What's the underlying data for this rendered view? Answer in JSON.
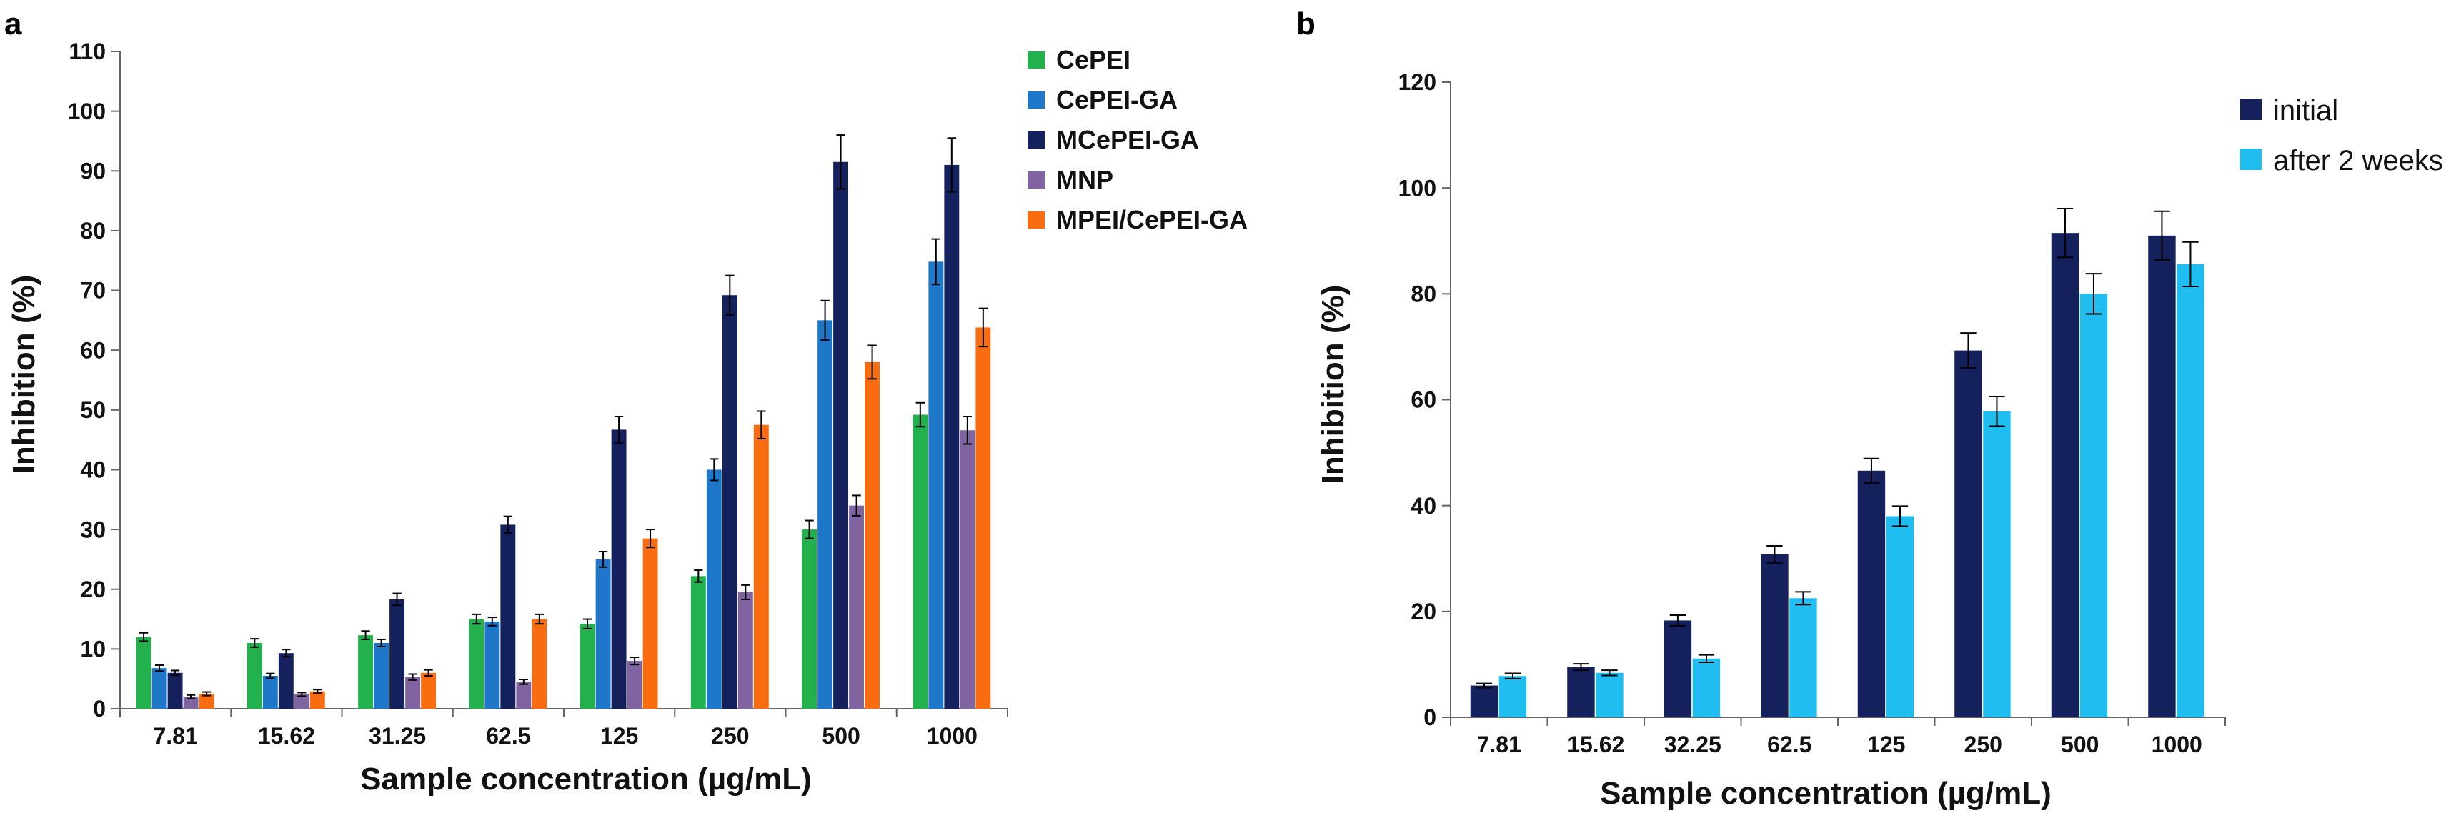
{
  "chart_data": [
    {
      "panel": "a",
      "type": "bar",
      "xlabel": "Sample concentration (µg/mL)",
      "ylabel": "Inhibition (%)",
      "ylim": [
        0,
        110
      ],
      "ytick_step": 10,
      "categories": [
        "7.81",
        "15.62",
        "31.25",
        "62.5",
        "125",
        "250",
        "500",
        "1000"
      ],
      "series": [
        {
          "name": "CePEI",
          "color": "#22b14c",
          "values": [
            12,
            11,
            12.3,
            15,
            14.2,
            22.2,
            30,
            49.2
          ],
          "errors": [
            0.7,
            0.7,
            0.7,
            0.8,
            0.8,
            1.0,
            1.5,
            2.0
          ]
        },
        {
          "name": "CePEI-GA",
          "color": "#1f77c9",
          "values": [
            6.8,
            5.5,
            11,
            14.6,
            25,
            40,
            65,
            74.8
          ],
          "errors": [
            0.5,
            0.4,
            0.6,
            0.7,
            1.3,
            1.8,
            3.3,
            3.8
          ]
        },
        {
          "name": "MCePEI-GA",
          "color": "#14215c",
          "values": [
            6,
            9.3,
            18.3,
            30.8,
            46.7,
            69.2,
            91.5,
            91
          ],
          "errors": [
            0.4,
            0.6,
            1.0,
            1.4,
            2.2,
            3.3,
            4.5,
            4.5
          ]
        },
        {
          "name": "MNP",
          "color": "#8064a2",
          "values": [
            2,
            2.4,
            5.3,
            4.5,
            8,
            19.5,
            34,
            46.6
          ],
          "errors": [
            0.3,
            0.3,
            0.5,
            0.4,
            0.6,
            1.2,
            1.7,
            2.3
          ]
        },
        {
          "name": "MPEI/CePEI-GA",
          "color": "#f96d10",
          "values": [
            2.5,
            2.9,
            6,
            15,
            28.5,
            47.5,
            58,
            63.8
          ],
          "errors": [
            0.3,
            0.3,
            0.5,
            0.8,
            1.5,
            2.3,
            2.8,
            3.2
          ]
        }
      ],
      "legend_position": "top-right"
    },
    {
      "panel": "b",
      "type": "bar",
      "xlabel": "Sample concentration (µg/mL)",
      "ylabel": "Inhibition (%)",
      "ylim": [
        0,
        120
      ],
      "ytick_step": 20,
      "categories": [
        "7.81",
        "15.62",
        "32.25",
        "62.5",
        "125",
        "250",
        "500",
        "1000"
      ],
      "series": [
        {
          "name": "initial",
          "color": "#14215c",
          "values": [
            6,
            9.5,
            18.3,
            30.8,
            46.6,
            69.3,
            91.5,
            91
          ],
          "errors": [
            0.4,
            0.6,
            1.0,
            1.6,
            2.3,
            3.3,
            4.6,
            4.6
          ]
        },
        {
          "name": "after 2 weeks",
          "color": "#1fbdf0",
          "values": [
            7.8,
            8.4,
            11.1,
            22.5,
            38,
            57.8,
            80,
            85.6
          ],
          "errors": [
            0.5,
            0.5,
            0.7,
            1.2,
            1.9,
            2.8,
            3.8,
            4.2
          ]
        }
      ],
      "legend_position": "top-right"
    }
  ]
}
